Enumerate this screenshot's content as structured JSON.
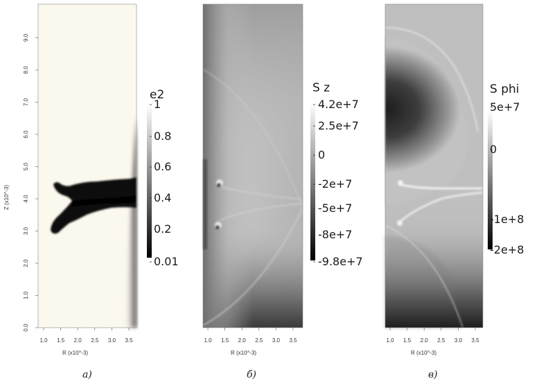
{
  "figure": {
    "panels": [
      {
        "id": "a",
        "caption": "а)",
        "xlabel": "R (x10^-3)",
        "ylabel": "Z (x10^-3)",
        "xticks": [
          "1.0",
          "1.5",
          "2.0",
          "2.5",
          "3.0",
          "3.5"
        ],
        "yticks": [
          "0.0",
          "1.0",
          "2.0",
          "3.0",
          "4.0",
          "5.0",
          "6.0",
          "7.0",
          "8.0",
          "9.0"
        ],
        "colorbar": {
          "title": "e2",
          "labels": [
            "1",
            "0.8",
            "0.6",
            "0.4",
            "0.2",
            "0.01"
          ],
          "range": [
            0.01,
            1
          ]
        }
      },
      {
        "id": "b",
        "caption": "б)",
        "xlabel": "R (x10^-3)",
        "xticks": [
          "1.0",
          "1.5",
          "2.0",
          "2.5",
          "3.0",
          "3.5"
        ],
        "colorbar": {
          "title": "S z",
          "labels": [
            "4.2e+7",
            "2.5e+7",
            "0",
            "-2e+7",
            "-5e+7",
            "-8e+7",
            "-9.8e+7"
          ],
          "range": [
            -98000000,
            42000000
          ]
        }
      },
      {
        "id": "c",
        "caption": "в)",
        "xlabel": "R (x10^-3)",
        "xticks": [
          "1.0",
          "1.5",
          "2.0",
          "2.5",
          "3.0",
          "3.5"
        ],
        "colorbar": {
          "title": "S phi",
          "labels": [
            "5e+7",
            "0",
            "-1e+8",
            "-2e+8"
          ],
          "range": [
            -200000000,
            50000000
          ]
        }
      }
    ],
    "colors": {
      "panel_a_background": "#fbf8ee",
      "field_gray": "#bfbfbf",
      "ink": "#1a1a1a"
    }
  }
}
